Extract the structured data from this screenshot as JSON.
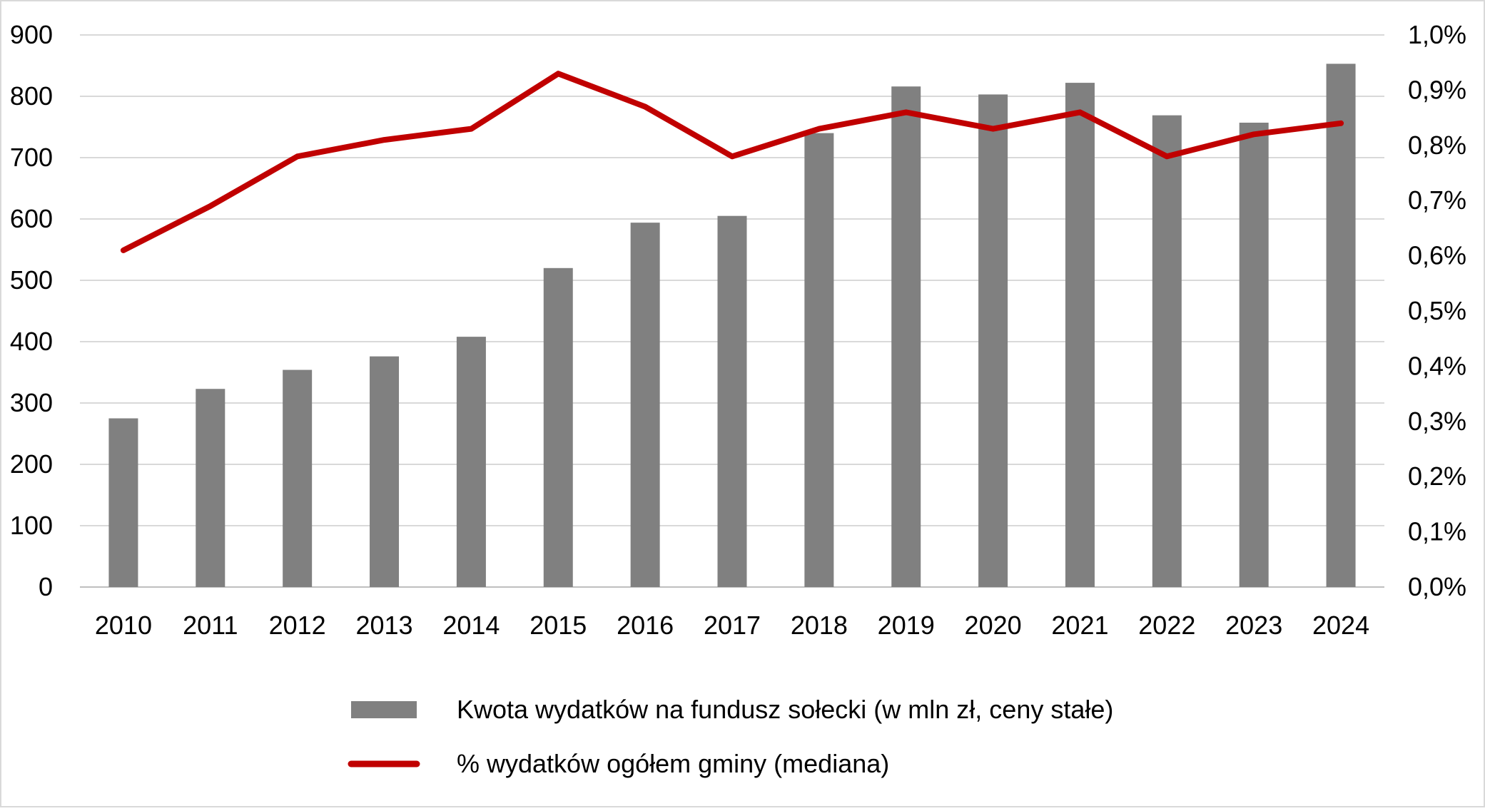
{
  "chart_data": {
    "type": "bar",
    "categories": [
      "2010",
      "2011",
      "2012",
      "2013",
      "2014",
      "2015",
      "2016",
      "2017",
      "2018",
      "2019",
      "2020",
      "2021",
      "2022",
      "2023",
      "2024"
    ],
    "series": [
      {
        "name": "Kwota wydatków na fundusz sołecki (w mln zł, ceny stałe)",
        "type": "bar",
        "axis": "left",
        "color": "#808080",
        "values": [
          275,
          323,
          354,
          376,
          408,
          520,
          594,
          605,
          740,
          816,
          803,
          822,
          769,
          757,
          853
        ]
      },
      {
        "name": "% wydatków ogółem gminy (mediana)",
        "type": "line",
        "axis": "right",
        "color": "#c00000",
        "values": [
          0.61,
          0.69,
          0.78,
          0.81,
          0.83,
          0.93,
          0.87,
          0.78,
          0.83,
          0.86,
          0.83,
          0.86,
          0.78,
          0.82,
          0.84
        ]
      }
    ],
    "y_left": {
      "ylim": [
        0,
        900
      ],
      "ticks": [
        0,
        100,
        200,
        300,
        400,
        500,
        600,
        700,
        800,
        900
      ],
      "tick_labels": [
        "0",
        "100",
        "200",
        "300",
        "400",
        "500",
        "600",
        "700",
        "800",
        "900"
      ]
    },
    "y_right": {
      "ylim": [
        0,
        1.0
      ],
      "ticks": [
        0,
        0.1,
        0.2,
        0.3,
        0.4,
        0.5,
        0.6,
        0.7,
        0.8,
        0.9,
        1.0
      ],
      "tick_labels": [
        "0,0%",
        "0,1%",
        "0,2%",
        "0,3%",
        "0,4%",
        "0,5%",
        "0,6%",
        "0,7%",
        "0,8%",
        "0,9%",
        "1,0%"
      ]
    },
    "grid": true,
    "legend_position": "bottom",
    "title": "",
    "xlabel": "",
    "ylabel": ""
  }
}
